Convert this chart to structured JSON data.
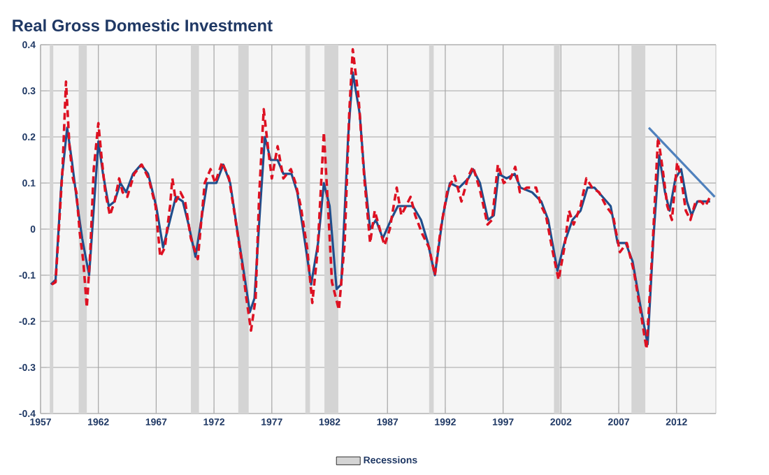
{
  "chart_data": {
    "type": "line",
    "title": "Real Gross Domestic Investment",
    "x": [
      1957.9,
      1958.3,
      1958.8,
      1959.3,
      1959.7,
      1960.2,
      1960.6,
      1961.2,
      1961.7,
      1962.0,
      1962.4,
      1962.9,
      1963.4,
      1963.9,
      1964.4,
      1965.0,
      1965.7,
      1966.3,
      1967.0,
      1967.6,
      1968.2,
      1968.7,
      1969.3,
      1969.8,
      1970.4,
      1970.9,
      1971.4,
      1972.2,
      1972.8,
      1973.4,
      1974.0,
      1974.5,
      1975.1,
      1975.5,
      1976.0,
      1976.4,
      1976.9,
      1977.5,
      1978.0,
      1978.7,
      1979.2,
      1979.7,
      1980.4,
      1981.0,
      1981.5,
      1982.0,
      1982.6,
      1983.0,
      1983.6,
      1984.0,
      1984.6,
      1985.0,
      1985.5,
      1986.0,
      1986.6,
      1987.3,
      1987.9,
      1988.5,
      1989.2,
      1989.9,
      1990.5,
      1991.1,
      1991.8,
      1992.4,
      1993.2,
      1994.0,
      1994.4,
      1995.0,
      1995.7,
      1996.2,
      1996.6,
      1997.3,
      1998.0,
      1998.5,
      1999.5,
      2000.3,
      2000.9,
      2001.7,
      2002.3,
      2003.0,
      2003.7,
      2004.3,
      2004.9,
      2005.6,
      2006.3,
      2006.9,
      2007.6,
      2008.2,
      2008.9,
      2009.5,
      2010.0,
      2010.5,
      2011.0,
      2011.4,
      2011.9,
      2012.4,
      2012.9,
      2013.3,
      2013.8,
      2014.4,
      2014.9
    ],
    "series": [
      {
        "color": "#1f4e8c",
        "line_style": "solid",
        "values": [
          -0.12,
          -0.11,
          0.1,
          0.22,
          0.15,
          0.05,
          -0.02,
          -0.1,
          0.08,
          0.19,
          0.12,
          0.05,
          0.06,
          0.1,
          0.08,
          0.12,
          0.14,
          0.12,
          0.05,
          -0.04,
          0.02,
          0.07,
          0.06,
          0.01,
          -0.06,
          0.02,
          0.1,
          0.1,
          0.14,
          0.1,
          0.0,
          -0.08,
          -0.18,
          -0.15,
          0.05,
          0.2,
          0.15,
          0.15,
          0.12,
          0.12,
          0.08,
          0.0,
          -0.12,
          -0.03,
          0.1,
          0.05,
          -0.13,
          -0.12,
          0.2,
          0.34,
          0.25,
          0.12,
          0.0,
          0.02,
          -0.02,
          0.02,
          0.05,
          0.05,
          0.05,
          0.02,
          -0.03,
          -0.1,
          0.03,
          0.1,
          0.09,
          0.11,
          0.13,
          0.1,
          0.02,
          0.03,
          0.12,
          0.11,
          0.12,
          0.09,
          0.08,
          0.06,
          0.02,
          -0.09,
          -0.03,
          0.02,
          0.04,
          0.09,
          0.09,
          0.07,
          0.05,
          -0.03,
          -0.03,
          -0.07,
          -0.17,
          -0.25,
          -0.02,
          0.16,
          0.08,
          0.04,
          0.11,
          0.13,
          0.06,
          0.03,
          0.06,
          0.06,
          0.06
        ]
      },
      {
        "color": "#dd1122",
        "line_style": "dashed",
        "x": [
          1957.97,
          1958.3,
          1958.9,
          1959.2,
          1959.5,
          1959.8,
          1960.1,
          1960.4,
          1960.7,
          1961.0,
          1961.3,
          1961.6,
          1962.0,
          1962.3,
          1962.6,
          1963.0,
          1963.4,
          1963.8,
          1964.1,
          1964.5,
          1965.1,
          1965.75,
          1966.35,
          1966.95,
          1967.35,
          1967.75,
          1968.2,
          1968.4,
          1968.7,
          1969.1,
          1969.5,
          1970.0,
          1970.6,
          1971.2,
          1971.7,
          1972.1,
          1972.7,
          1973.3,
          1973.8,
          1974.4,
          1974.8,
          1975.2,
          1975.6,
          1975.9,
          1976.3,
          1976.7,
          1977.0,
          1977.5,
          1978.0,
          1978.65,
          1979.05,
          1979.5,
          1980.05,
          1980.5,
          1980.95,
          1981.5,
          1981.9,
          1982.2,
          1982.8,
          1983.3,
          1983.7,
          1984.0,
          1984.5,
          1985.0,
          1985.5,
          1985.9,
          1986.5,
          1986.75,
          1987.2,
          1987.8,
          1988.2,
          1989.0,
          1989.4,
          1990.0,
          1990.6,
          1991.1,
          1991.6,
          1992.2,
          1992.8,
          1993.4,
          1994.0,
          1994.4,
          1995.0,
          1995.65,
          1996.05,
          1996.55,
          1997.05,
          1997.65,
          1998.05,
          1998.45,
          1999.05,
          1999.85,
          2000.3,
          2000.7,
          2001.3,
          2001.8,
          2002.3,
          2002.7,
          2003.1,
          2003.7,
          2004.2,
          2004.7,
          2005.3,
          2005.9,
          2006.5,
          2007.1,
          2007.7,
          2008.3,
          2008.9,
          2009.4,
          2009.9,
          2010.4,
          2010.8,
          2011.2,
          2011.6,
          2012.05,
          2012.4,
          2012.8,
          2013.2,
          2013.65,
          2014.1,
          2014.5,
          2014.9
        ],
        "values": [
          -0.12,
          -0.115,
          0.13,
          0.32,
          0.18,
          0.11,
          0.08,
          -0.01,
          -0.07,
          -0.17,
          -0.05,
          0.13,
          0.23,
          0.15,
          0.08,
          0.03,
          0.06,
          0.11,
          0.08,
          0.07,
          0.12,
          0.14,
          0.11,
          0.05,
          -0.06,
          -0.04,
          0.05,
          0.11,
          0.06,
          0.08,
          0.06,
          -0.02,
          -0.065,
          0.1,
          0.13,
          0.1,
          0.145,
          0.11,
          0.03,
          -0.07,
          -0.15,
          -0.22,
          -0.15,
          0.07,
          0.26,
          0.17,
          0.11,
          0.18,
          0.11,
          0.13,
          0.1,
          0.05,
          -0.04,
          -0.16,
          -0.05,
          0.21,
          0.03,
          -0.115,
          -0.175,
          -0.03,
          0.255,
          0.39,
          0.285,
          0.11,
          -0.03,
          0.04,
          -0.015,
          -0.035,
          0.0,
          0.09,
          0.03,
          0.07,
          0.03,
          -0.01,
          -0.04,
          -0.1,
          0.0,
          0.085,
          0.115,
          0.06,
          0.115,
          0.135,
          0.085,
          0.01,
          0.02,
          0.14,
          0.1,
          0.11,
          0.135,
          0.08,
          0.09,
          0.09,
          0.05,
          0.03,
          -0.05,
          -0.11,
          -0.04,
          0.04,
          0.01,
          0.05,
          0.11,
          0.09,
          0.08,
          0.05,
          0.03,
          -0.05,
          -0.03,
          -0.09,
          -0.18,
          -0.26,
          -0.05,
          0.2,
          0.13,
          0.05,
          0.02,
          0.145,
          0.11,
          0.04,
          0.02,
          0.06,
          0.06,
          0.05,
          0.07
        ]
      },
      {
        "color": "#4f81bd",
        "line_style": "solid",
        "x": [
          2009.6,
          2015.3
        ],
        "values": [
          0.22,
          0.07
        ]
      }
    ],
    "xlim": [
      1957,
      2015.4
    ],
    "xticks": [
      1957,
      1962,
      1967,
      1972,
      1977,
      1982,
      1987,
      1992,
      1997,
      2002,
      2007,
      2012
    ],
    "ylim": [
      -0.4,
      0.4
    ],
    "yticks": [
      -0.4,
      -0.3,
      -0.2,
      -0.1,
      0,
      0.1,
      0.2,
      0.3,
      0.4
    ],
    "grid": true,
    "legend": "bottom",
    "bands": [
      {
        "axis": "x",
        "from": 1957.8,
        "to": 1958.1,
        "label": "Recessions",
        "color": "#d4d4d4"
      },
      {
        "axis": "x",
        "from": 1960.3,
        "to": 1961.0,
        "color": "#d4d4d4"
      },
      {
        "axis": "x",
        "from": 1970.0,
        "to": 1970.7,
        "color": "#d4d4d4"
      },
      {
        "axis": "x",
        "from": 1974.1,
        "to": 1975.0,
        "color": "#d4d4d4"
      },
      {
        "axis": "x",
        "from": 1979.9,
        "to": 1980.3,
        "color": "#d4d4d4"
      },
      {
        "axis": "x",
        "from": 1981.55,
        "to": 1982.75,
        "color": "#d4d4d4"
      },
      {
        "axis": "x",
        "from": 1990.6,
        "to": 1991.0,
        "color": "#d4d4d4"
      },
      {
        "axis": "x",
        "from": 2001.4,
        "to": 2001.9,
        "color": "#d4d4d4"
      },
      {
        "axis": "x",
        "from": 2008.1,
        "to": 2009.3,
        "color": "#d4d4d4"
      }
    ]
  }
}
